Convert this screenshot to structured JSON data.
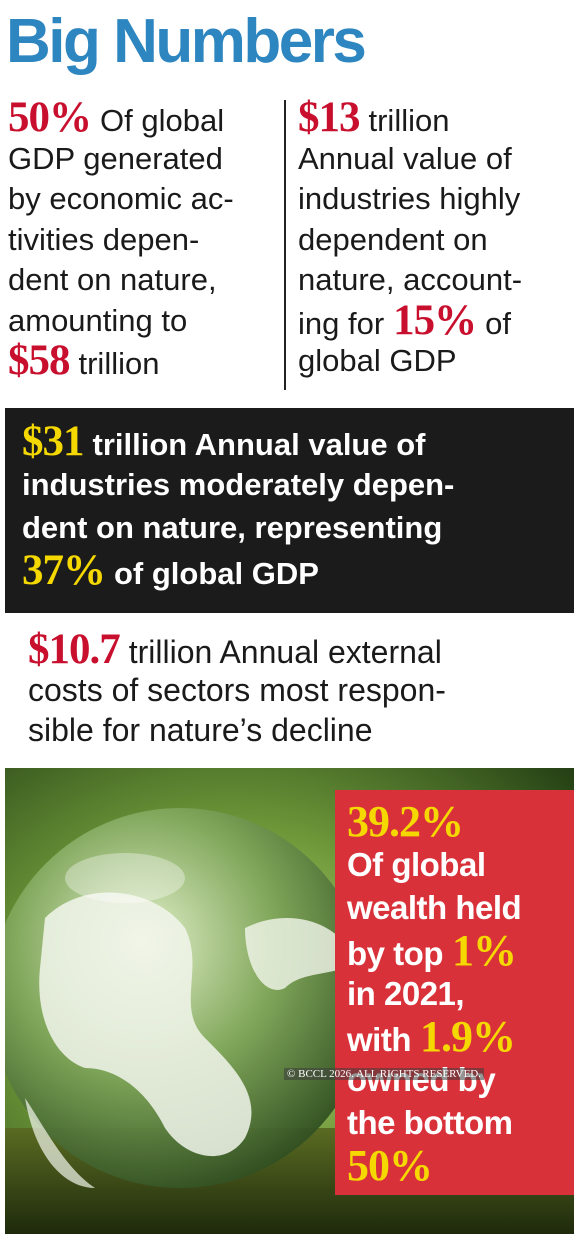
{
  "title": "Big Numbers",
  "facts": [
    {
      "lines": [
        [
          {
            "figure": "50%"
          },
          {
            "text": "Of global"
          }
        ],
        [
          {
            "text": "GDP generated"
          }
        ],
        [
          {
            "text": "by economic ac-"
          }
        ],
        [
          {
            "text": "tivities depen-"
          }
        ],
        [
          {
            "text": "dent on nature,"
          }
        ],
        [
          {
            "text": "amounting to"
          }
        ],
        [
          {
            "figure": "$58"
          },
          {
            "text": "trillion"
          }
        ]
      ]
    },
    {
      "lines": [
        [
          {
            "figure": "$13"
          },
          {
            "text": "trillion"
          }
        ],
        [
          {
            "text": "Annual value of"
          }
        ],
        [
          {
            "text": "industries highly"
          }
        ],
        [
          {
            "text": "dependent on"
          }
        ],
        [
          {
            "text": "nature, account-"
          }
        ],
        [
          {
            "text": "ing for"
          },
          {
            "figure": "15%"
          },
          {
            "text": "of"
          }
        ],
        [
          {
            "text": "global GDP"
          }
        ]
      ]
    },
    {
      "lines": [
        [
          {
            "figure": "$31"
          },
          {
            "text": "trillion Annual value of"
          }
        ],
        [
          {
            "text": "industries moderately depen-"
          }
        ],
        [
          {
            "text": "dent on nature, representing"
          }
        ],
        [
          {
            "figure": "37%"
          },
          {
            "text": "of global GDP"
          }
        ]
      ]
    },
    {
      "lines": [
        [
          {
            "figure": "$10.7"
          },
          {
            "text": "trillion Annual external"
          }
        ],
        [
          {
            "text": "costs of sectors most respon-"
          }
        ],
        [
          {
            "text": "sible for nature’s decline"
          }
        ]
      ]
    },
    {
      "lines": [
        [
          {
            "figure": "39.2%"
          }
        ],
        [
          {
            "text": "Of global"
          }
        ],
        [
          {
            "text": "wealth held"
          }
        ],
        [
          {
            "text": "by top"
          },
          {
            "figure": "1%"
          }
        ],
        [
          {
            "text": "in 2021,"
          }
        ],
        [
          {
            "text": "with"
          },
          {
            "figure": "1.9%"
          }
        ],
        [
          {
            "text": "owned by"
          }
        ],
        [
          {
            "text": "the bottom"
          }
        ],
        [
          {
            "figure": "50%"
          }
        ]
      ]
    }
  ],
  "watermark": "© BCCL 2026. ALL RIGHTS RESERVED."
}
